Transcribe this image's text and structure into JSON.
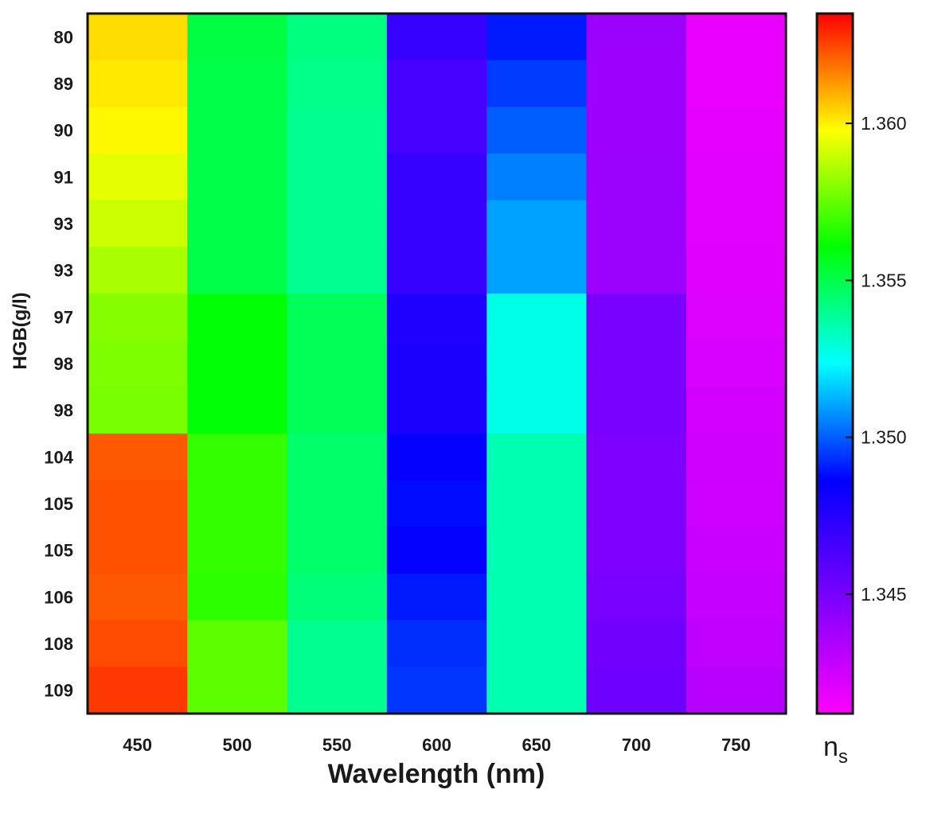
{
  "chart_data": {
    "type": "heatmap",
    "xlabel": "Wavelength (nm)",
    "ylabel": "HGB(g/l)",
    "colorbar_label": "n",
    "colorbar_label_subscript": "s",
    "x_categories": [
      "450",
      "500",
      "550",
      "600",
      "650",
      "700",
      "750"
    ],
    "y_categories": [
      "80",
      "89",
      "90",
      "91",
      "93",
      "93",
      "97",
      "98",
      "98",
      "104",
      "105",
      "105",
      "106",
      "108",
      "109"
    ],
    "colorbar_range": [
      1.3412,
      1.3635
    ],
    "colorbar_ticks": [
      "1.345",
      "1.350",
      "1.355",
      "1.360"
    ],
    "colorscale": [
      "#ff00ff",
      "#7a00ff",
      "#0000ff",
      "#00ffff",
      "#00ff00",
      "#ffff00",
      "#ff0000"
    ],
    "values": [
      [
        1.3603,
        1.3551,
        1.3542,
        1.347,
        1.349,
        1.344,
        1.3418
      ],
      [
        1.3601,
        1.355,
        1.3541,
        1.3465,
        1.3495,
        1.3439,
        1.3418
      ],
      [
        1.3599,
        1.355,
        1.354,
        1.3465,
        1.35,
        1.3439,
        1.3419
      ],
      [
        1.3594,
        1.355,
        1.354,
        1.347,
        1.3505,
        1.344,
        1.342
      ],
      [
        1.359,
        1.355,
        1.354,
        1.347,
        1.351,
        1.344,
        1.342
      ],
      [
        1.3585,
        1.355,
        1.354,
        1.347,
        1.351,
        1.344,
        1.3421
      ],
      [
        1.358,
        1.356,
        1.3548,
        1.3477,
        1.3527,
        1.345,
        1.3422
      ],
      [
        1.3579,
        1.356,
        1.3548,
        1.3478,
        1.3527,
        1.345,
        1.3423
      ],
      [
        1.3578,
        1.356,
        1.3548,
        1.3478,
        1.3527,
        1.345,
        1.3424
      ],
      [
        1.3622,
        1.3568,
        1.3545,
        1.3485,
        1.3535,
        1.3448,
        1.3425
      ],
      [
        1.3623,
        1.3568,
        1.3545,
        1.3488,
        1.3535,
        1.3448,
        1.3426
      ],
      [
        1.3623,
        1.3568,
        1.3545,
        1.3485,
        1.3535,
        1.3448,
        1.3427
      ],
      [
        1.3622,
        1.3567,
        1.3543,
        1.349,
        1.3535,
        1.345,
        1.3428
      ],
      [
        1.3624,
        1.3574,
        1.354,
        1.3493,
        1.3535,
        1.3452,
        1.343
      ],
      [
        1.3627,
        1.3574,
        1.354,
        1.3494,
        1.3535,
        1.3453,
        1.3432
      ]
    ]
  }
}
